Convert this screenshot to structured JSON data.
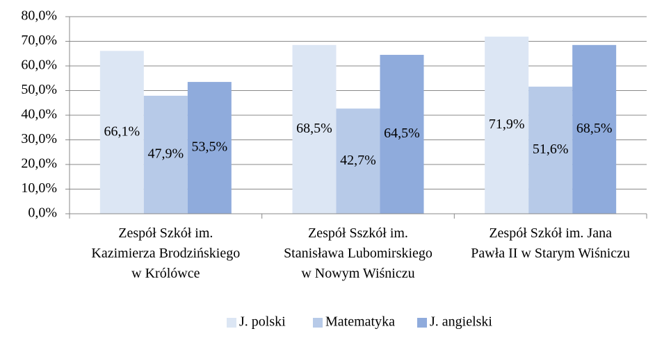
{
  "chart_data": {
    "type": "bar",
    "categories": [
      "Zespół Szkół im. Kazimierza Brodzińskiego w Królówce",
      "Zespół Sszkół im. Stanisława Lubomirskiego w Nowym Wiśniczu",
      "Zespół Szkół im. Jana Pawła II w Starym Wiśniczu"
    ],
    "series": [
      {
        "name": "J. polski",
        "color": "#dce6f4",
        "values": [
          66.1,
          68.5,
          71.9
        ],
        "value_labels": [
          "66,1%",
          "68,5%",
          "71,9%"
        ]
      },
      {
        "name": "Matematyka",
        "color": "#b7cae8",
        "values": [
          47.9,
          42.7,
          51.6
        ],
        "value_labels": [
          "47,9%",
          "42,7%",
          "51,6%"
        ]
      },
      {
        "name": "J. angielski",
        "color": "#8fabdc",
        "values": [
          53.5,
          64.5,
          68.5
        ],
        "value_labels": [
          "53,5%",
          "64,5%",
          "68,5%"
        ]
      }
    ],
    "ylim": [
      0,
      80
    ],
    "yticks": [
      {
        "value": 0,
        "label": "0,0%"
      },
      {
        "value": 10,
        "label": "10,0%"
      },
      {
        "value": 20,
        "label": "20,0%"
      },
      {
        "value": 30,
        "label": "30,0%"
      },
      {
        "value": 40,
        "label": "40,0%"
      },
      {
        "value": 50,
        "label": "50,0%"
      },
      {
        "value": 60,
        "label": "60,0%"
      },
      {
        "value": 70,
        "label": "70,0%"
      },
      {
        "value": 80,
        "label": "80,0%"
      }
    ],
    "grid": true,
    "legend": "bottom"
  }
}
